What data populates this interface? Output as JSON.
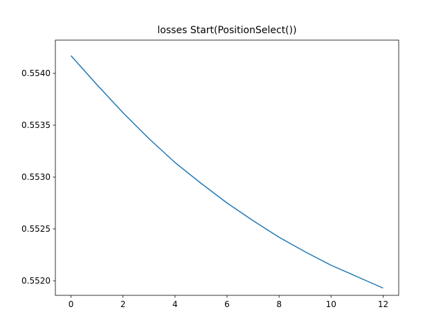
{
  "chart_data": {
    "type": "line",
    "title": "losses Start(PositionSelect())",
    "xlabel": "",
    "ylabel": "",
    "xlim": [
      -0.6,
      12.6
    ],
    "ylim": [
      0.55186,
      0.55432
    ],
    "xticks": [
      0,
      2,
      4,
      6,
      8,
      10,
      12
    ],
    "xtick_labels": [
      "0",
      "2",
      "4",
      "6",
      "8",
      "10",
      "12"
    ],
    "yticks": [
      0.552,
      0.5525,
      0.553,
      0.5535,
      0.554
    ],
    "ytick_labels": [
      "0.5520",
      "0.5525",
      "0.5530",
      "0.5535",
      "0.5540"
    ],
    "grid": false,
    "series": [
      {
        "color": "#1f77b4",
        "x": [
          0,
          1,
          2,
          3,
          4,
          5,
          6,
          7,
          8,
          9,
          10,
          11,
          12
        ],
        "y": [
          0.55417,
          0.55389,
          0.55362,
          0.55337,
          0.55314,
          0.55294,
          0.55275,
          0.55258,
          0.55242,
          0.55228,
          0.55215,
          0.55204,
          0.55193
        ]
      }
    ]
  }
}
